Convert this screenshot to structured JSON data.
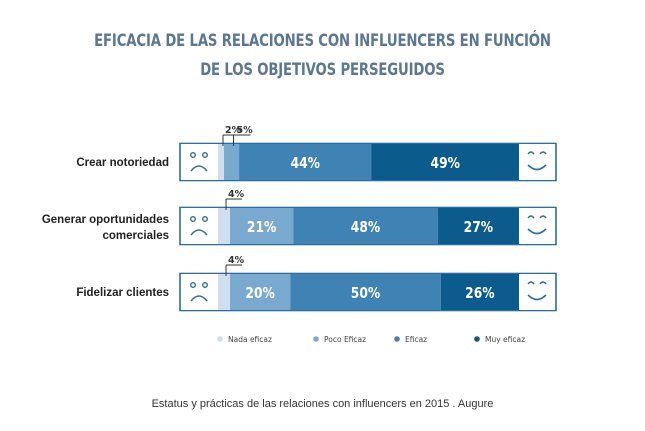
{
  "title_line1": "EFICACIA DE LAS RELACIONES CON INFLUENCERS EN FUNCIÓN",
  "title_line2": "DE LOS OBJETIVOS PERSEGUIDOS",
  "caption": "Estatus y prácticas de las relaciones con influencers en 2015 . Augure",
  "colors": {
    "nada": "#cfdff0",
    "poco": "#7aa9d0",
    "eficaz": "#3f83b5",
    "muy": "#0b5c8d",
    "face": "#2c6f9f",
    "title": "#5c7793"
  },
  "chart_data": {
    "type": "bar",
    "orientation": "horizontal",
    "stacked": true,
    "categories": [
      [
        "Crear notoriedad"
      ],
      [
        "Generar oportunidades",
        "comerciales"
      ],
      [
        "Fidelizar clientes"
      ]
    ],
    "series": [
      {
        "name": "Nada eficaz",
        "values": [
          2,
          4,
          4
        ]
      },
      {
        "name": "Poco Eficaz",
        "values": [
          5,
          21,
          20
        ]
      },
      {
        "name": "Eficaz",
        "values": [
          44,
          48,
          50
        ]
      },
      {
        "name": "Muy eficaz",
        "values": [
          49,
          27,
          26
        ]
      }
    ],
    "value_labels": [
      [
        "2%",
        "5%",
        "44%",
        "49%"
      ],
      [
        "4%",
        "21%",
        "48%",
        "27%"
      ],
      [
        "4%",
        "20%",
        "50%",
        "26%"
      ]
    ],
    "icons": [
      "sad-face-icon",
      "happy-face-icon"
    ],
    "legend_position": "bottom"
  }
}
